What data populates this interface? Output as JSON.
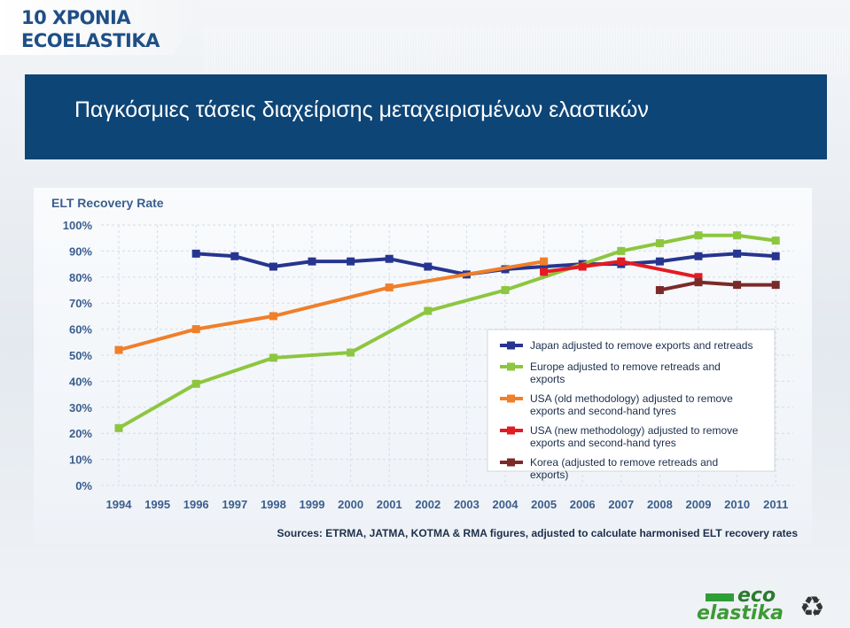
{
  "brand": {
    "line1": "10 ΧΡΟΝΙΑ",
    "line2": "ECOELASTIKA"
  },
  "header": {
    "title": "Παγκόσμιες τάσεις διαχείρισης μεταχειρισμένων ελαστικών"
  },
  "footer": {
    "logo_top": "eco",
    "logo_bottom": "elastika",
    "logo_icon": "recycle-icon"
  },
  "chart_data": {
    "type": "line",
    "title": "ELT Recovery Rate",
    "source": "Sources: ETRMA, JATMA, KOTMA & RMA figures, adjusted to calculate harmonised ELT recovery rates",
    "categories": [
      "1994",
      "1995",
      "1996",
      "1997",
      "1998",
      "1999",
      "2000",
      "2001",
      "2002",
      "2003",
      "2004",
      "2005",
      "2006",
      "2007",
      "2008",
      "2009",
      "2010",
      "2011"
    ],
    "y_ticks": [
      "0%",
      "10%",
      "20%",
      "30%",
      "40%",
      "50%",
      "60%",
      "70%",
      "80%",
      "90%",
      "100%"
    ],
    "ylim": [
      0,
      100
    ],
    "grid": true,
    "legend_position": "bottom-right",
    "series": [
      {
        "name": "Japan adjusted to remove exports and retreads",
        "color": "#26358f",
        "values": [
          null,
          null,
          89,
          88,
          84,
          86,
          86,
          87,
          84,
          81,
          83,
          84,
          85,
          85,
          86,
          88,
          89,
          88
        ]
      },
      {
        "name": "Europe  adjusted to remove retreads and exports",
        "color": "#8dc63f",
        "values": [
          22,
          null,
          39,
          null,
          49,
          null,
          51,
          null,
          67,
          null,
          75,
          null,
          null,
          90,
          93,
          96,
          96,
          94
        ]
      },
      {
        "name": "USA (old methodology) adjusted to remove exports and second-hand tyres",
        "color": "#f07f2a",
        "values": [
          52,
          null,
          60,
          null,
          65,
          null,
          null,
          76,
          null,
          null,
          null,
          86,
          null,
          null,
          null,
          null,
          null,
          null
        ]
      },
      {
        "name": "USA (new methodology) adjusted to remove exports and second-hand tyres",
        "color": "#e31b23",
        "values": [
          null,
          null,
          null,
          null,
          null,
          null,
          null,
          null,
          null,
          null,
          null,
          82,
          84,
          86,
          null,
          80,
          null,
          null
        ]
      },
      {
        "name": "Korea (adjusted to remove retreads and exports)",
        "color": "#7b2a2a",
        "values": [
          null,
          null,
          null,
          null,
          null,
          null,
          null,
          null,
          null,
          null,
          null,
          null,
          null,
          null,
          75,
          78,
          77,
          77
        ]
      }
    ]
  }
}
